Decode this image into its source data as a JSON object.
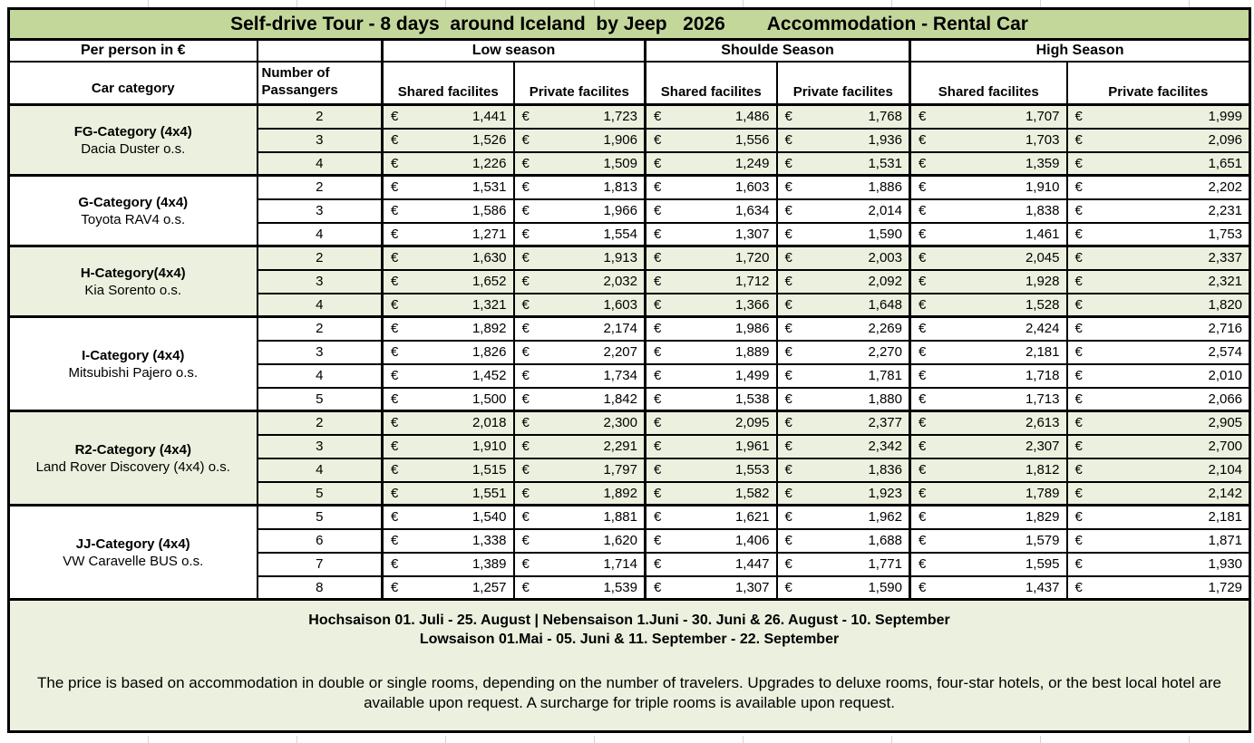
{
  "title": "Self-drive Tour - 8 days  around Iceland  by Jeep   2026        Accommodation - Rental Car",
  "currency_symbol": "€",
  "header": {
    "per_person_label": "Per person in €",
    "seasons": [
      "Low season",
      "Shoulde Season",
      "High Season"
    ],
    "car_category_label": "Car category",
    "passengers_label_line1": "Number of",
    "passengers_label_line2": "Passangers",
    "facility_labels": [
      "Shared facilites",
      "Private facilites"
    ]
  },
  "categories": [
    {
      "name": "FG-Category (4x4)",
      "model": "Dacia Duster o.s.",
      "rows": [
        {
          "passengers": "2",
          "prices": [
            "1,441",
            "1,723",
            "1,486",
            "1,768",
            "1,707",
            "1,999"
          ]
        },
        {
          "passengers": "3",
          "prices": [
            "1,526",
            "1,906",
            "1,556",
            "1,936",
            "1,703",
            "2,096"
          ]
        },
        {
          "passengers": "4",
          "prices": [
            "1,226",
            "1,509",
            "1,249",
            "1,531",
            "1,359",
            "1,651"
          ]
        }
      ]
    },
    {
      "name": "G-Category (4x4)",
      "model": "Toyota RAV4 o.s.",
      "rows": [
        {
          "passengers": "2",
          "prices": [
            "1,531",
            "1,813",
            "1,603",
            "1,886",
            "1,910",
            "2,202"
          ]
        },
        {
          "passengers": "3",
          "prices": [
            "1,586",
            "1,966",
            "1,634",
            "2,014",
            "1,838",
            "2,231"
          ]
        },
        {
          "passengers": "4",
          "prices": [
            "1,271",
            "1,554",
            "1,307",
            "1,590",
            "1,461",
            "1,753"
          ]
        }
      ]
    },
    {
      "name": "H-Category(4x4)",
      "model": "Kia Sorento o.s.",
      "rows": [
        {
          "passengers": "2",
          "prices": [
            "1,630",
            "1,913",
            "1,720",
            "2,003",
            "2,045",
            "2,337"
          ]
        },
        {
          "passengers": "3",
          "prices": [
            "1,652",
            "2,032",
            "1,712",
            "2,092",
            "1,928",
            "2,321"
          ]
        },
        {
          "passengers": "4",
          "prices": [
            "1,321",
            "1,603",
            "1,366",
            "1,648",
            "1,528",
            "1,820"
          ]
        }
      ]
    },
    {
      "name": "I-Category (4x4)",
      "model": "Mitsubishi Pajero o.s.",
      "rows": [
        {
          "passengers": "2",
          "prices": [
            "1,892",
            "2,174",
            "1,986",
            "2,269",
            "2,424",
            "2,716"
          ]
        },
        {
          "passengers": "3",
          "prices": [
            "1,826",
            "2,207",
            "1,889",
            "2,270",
            "2,181",
            "2,574"
          ]
        },
        {
          "passengers": "4",
          "prices": [
            "1,452",
            "1,734",
            "1,499",
            "1,781",
            "1,718",
            "2,010"
          ]
        },
        {
          "passengers": "5",
          "prices": [
            "1,500",
            "1,842",
            "1,538",
            "1,880",
            "1,713",
            "2,066"
          ]
        }
      ]
    },
    {
      "name": "R2-Category (4x4)",
      "model": "Land Rover Discovery (4x4) o.s.",
      "rows": [
        {
          "passengers": "2",
          "prices": [
            "2,018",
            "2,300",
            "2,095",
            "2,377",
            "2,613",
            "2,905"
          ]
        },
        {
          "passengers": "3",
          "prices": [
            "1,910",
            "2,291",
            "1,961",
            "2,342",
            "2,307",
            "2,700"
          ]
        },
        {
          "passengers": "4",
          "prices": [
            "1,515",
            "1,797",
            "1,553",
            "1,836",
            "1,812",
            "2,104"
          ]
        },
        {
          "passengers": "5",
          "prices": [
            "1,551",
            "1,892",
            "1,582",
            "1,923",
            "1,789",
            "2,142"
          ]
        }
      ]
    },
    {
      "name": "JJ-Category (4x4)",
      "model": "VW Caravelle BUS o.s.",
      "rows": [
        {
          "passengers": "5",
          "prices": [
            "1,540",
            "1,881",
            "1,621",
            "1,962",
            "1,829",
            "2,181"
          ]
        },
        {
          "passengers": "6",
          "prices": [
            "1,338",
            "1,620",
            "1,406",
            "1,688",
            "1,579",
            "1,871"
          ]
        },
        {
          "passengers": "7",
          "prices": [
            "1,389",
            "1,714",
            "1,447",
            "1,771",
            "1,595",
            "1,930"
          ]
        },
        {
          "passengers": "8",
          "prices": [
            "1,257",
            "1,539",
            "1,307",
            "1,590",
            "1,437",
            "1,729"
          ]
        }
      ]
    }
  ],
  "footer": {
    "season_line1": "Hochsaison 01. Juli - 25. August | Nebensaison 1.Juni - 30. Juni & 26. August - 10. September",
    "season_line2": "Lowsaison 01.Mai - 05. Juni  & 11. September - 22. September",
    "note": "The price is based on accommodation in double or single rooms, depending on the number of travelers. Upgrades to deluxe rooms, four-star hotels, or the best local hotel are available upon request. A surcharge for triple rooms is available upon request."
  },
  "colors": {
    "title_bg": "#c4d79b",
    "band_bg": "#ebf1de",
    "border": "#000000"
  }
}
